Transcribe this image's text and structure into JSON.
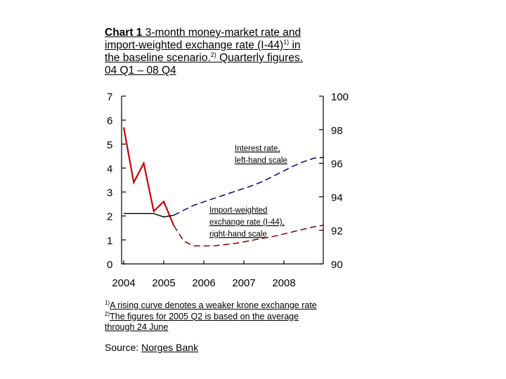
{
  "title": {
    "lead": "Chart 1",
    "line1": "3-month money-market rate and",
    "line2": "import-weighted exchange rate (I-44)",
    "line2_sup": "1)",
    "line2_end": " in",
    "line3": "the baseline scenario.",
    "line3_sup": "2)",
    "line3_end": " Quarterly figures.",
    "line4": "04 Q1 – 08 Q4"
  },
  "notes": {
    "n1_sup": "1)",
    "n1": "A rising curve denotes a weaker krone exchange rate",
    "n2_sup": "2)",
    "n2_line1": "The figures for 2005 Q2 is based on the average",
    "n2_line2": "through 24 June"
  },
  "source": {
    "label": "Source:",
    "text": "Norges Bank"
  },
  "annotations": {
    "interest_l1": "Interest rate,",
    "interest_l2": "left-hand scale",
    "fx_l1": "Import-weighted",
    "fx_l2": "exchange rate (I-44),",
    "fx_l3": "right-hand scale"
  },
  "chart_data": {
    "type": "line",
    "x_ticks": [
      "2004",
      "2005",
      "2006",
      "2007",
      "2008"
    ],
    "y_left": {
      "ylim": [
        0,
        7
      ],
      "ticks": [
        "0",
        "1",
        "2",
        "3",
        "4",
        "5",
        "6",
        "7"
      ]
    },
    "y_right": {
      "ylim": [
        90,
        100
      ],
      "ticks": [
        "90",
        "92",
        "94",
        "96",
        "98",
        "100"
      ]
    },
    "grid": false,
    "colors": {
      "historical": "#cc0000",
      "historical_fx": "#000000",
      "projection": "#000080",
      "projection_rate": "#800000"
    },
    "series": [
      {
        "axis": "left",
        "historical": [
          {
            "x": "2004 Q1",
            "y": 5.7
          },
          {
            "x": "2004 Q2",
            "y": 3.4
          },
          {
            "x": "2004 Q3",
            "y": 4.2
          },
          {
            "x": "2004 Q4",
            "y": 2.2
          },
          {
            "x": "2005 Q1",
            "y": 2.6
          },
          {
            "x": "2005 Q2",
            "y": 1.6
          }
        ],
        "projection": [
          {
            "x": "2005 Q2",
            "y": 1.6
          },
          {
            "x": "2005 Q3",
            "y": 0.95
          },
          {
            "x": "2005 Q4",
            "y": 0.75
          },
          {
            "x": "2006 Q1",
            "y": 0.75
          },
          {
            "x": "2006 Q2",
            "y": 0.75
          },
          {
            "x": "2006 Q3",
            "y": 0.8
          },
          {
            "x": "2006 Q4",
            "y": 0.85
          },
          {
            "x": "2007 Q1",
            "y": 0.92
          },
          {
            "x": "2007 Q2",
            "y": 1.0
          },
          {
            "x": "2007 Q3",
            "y": 1.08
          },
          {
            "x": "2007 Q4",
            "y": 1.15
          },
          {
            "x": "2008 Q1",
            "y": 1.25
          },
          {
            "x": "2008 Q2",
            "y": 1.35
          },
          {
            "x": "2008 Q3",
            "y": 1.45
          },
          {
            "x": "2008 Q4",
            "y": 1.55
          },
          {
            "x": "2009 Q1",
            "y": 1.62
          }
        ]
      },
      {
        "axis": "right",
        "historical": [
          {
            "x": "2004 Q1",
            "y": 93.0
          },
          {
            "x": "2004 Q2",
            "y": 93.0
          },
          {
            "x": "2004 Q3",
            "y": 93.0
          },
          {
            "x": "2004 Q4",
            "y": 93.0
          },
          {
            "x": "2005 Q1",
            "y": 92.8
          },
          {
            "x": "2005 Q2",
            "y": 92.9
          }
        ],
        "projection": [
          {
            "x": "2005 Q2",
            "y": 92.9
          },
          {
            "x": "2005 Q3",
            "y": 93.2
          },
          {
            "x": "2005 Q4",
            "y": 93.5
          },
          {
            "x": "2006 Q1",
            "y": 93.7
          },
          {
            "x": "2006 Q2",
            "y": 93.9
          },
          {
            "x": "2006 Q3",
            "y": 94.1
          },
          {
            "x": "2006 Q4",
            "y": 94.3
          },
          {
            "x": "2007 Q1",
            "y": 94.5
          },
          {
            "x": "2007 Q2",
            "y": 94.7
          },
          {
            "x": "2007 Q3",
            "y": 94.95
          },
          {
            "x": "2007 Q4",
            "y": 95.25
          },
          {
            "x": "2008 Q1",
            "y": 95.55
          },
          {
            "x": "2008 Q2",
            "y": 95.85
          },
          {
            "x": "2008 Q3",
            "y": 96.1
          },
          {
            "x": "2008 Q4",
            "y": 96.3
          },
          {
            "x": "2009 Q1",
            "y": 96.35
          }
        ]
      }
    ]
  }
}
